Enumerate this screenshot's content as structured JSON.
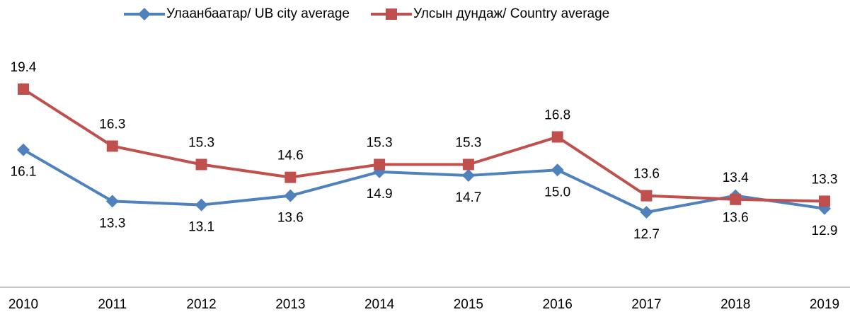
{
  "chart_data": {
    "type": "line",
    "categories": [
      "2010",
      "2011",
      "2012",
      "2013",
      "2014",
      "2015",
      "2016",
      "2017",
      "2018",
      "2019"
    ],
    "series": [
      {
        "name": "Улаанбаатар/ UB city average",
        "color": "#4f81bd",
        "marker": "diamond",
        "values": [
          16.1,
          13.3,
          13.1,
          13.6,
          14.9,
          14.7,
          15.0,
          12.7,
          13.6,
          12.9
        ],
        "value_labels": [
          "16.1",
          "13.3",
          "13.1",
          "13.6",
          "14.9",
          "14.7",
          "15.0",
          "12.7",
          "13.6",
          "12.9"
        ]
      },
      {
        "name": "Улсын дундаж/ Country average",
        "color": "#c0504d",
        "marker": "square",
        "values": [
          19.4,
          16.3,
          15.3,
          14.6,
          15.3,
          15.3,
          16.8,
          13.6,
          13.4,
          13.3
        ],
        "value_labels": [
          "19.4",
          "16.3",
          "15.3",
          "14.6",
          "15.3",
          "15.3",
          "16.8",
          "13.6",
          "13.4",
          "13.3"
        ]
      }
    ],
    "legend": "top"
  }
}
